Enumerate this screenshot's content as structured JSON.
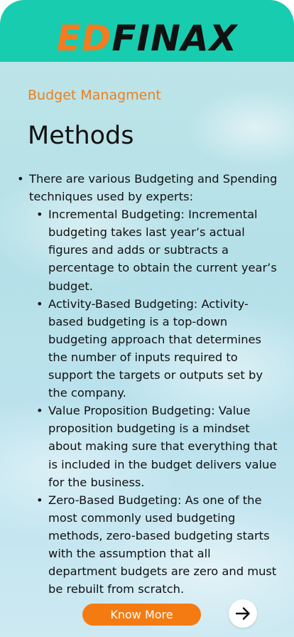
{
  "header": {
    "logo_part1": "ED",
    "logo_part2": "FINAX"
  },
  "section": {
    "category": "Budget Managment",
    "title": "Methods"
  },
  "content": {
    "intro": "There are various Budgeting and Spending techniques used by experts:",
    "items": [
      "Incremental Budgeting: Incremental budgeting takes last year’s actual figures and adds or subtracts a percentage to obtain the current year’s budget.",
      "Activity-Based Budgeting: Activity-based budgeting is a top-down budgeting approach that determines the number of inputs required to support the targets or outputs set by the company.",
      "Value Proposition Budgeting: Value proposition budgeting is a mindset about making sure that everything that is included in the budget delivers value for the business.",
      "Zero-Based Budgeting: As one of the most commonly used budgeting methods, zero-based budgeting starts with the assumption that all department budgets are zero and must be rebuilt from scratch."
    ]
  },
  "actions": {
    "know_more_label": "Know More",
    "next_icon": "arrow-right-icon"
  },
  "colors": {
    "header_bg": "#18ccb0",
    "accent": "#f47b12",
    "logo_dark": "#111111"
  }
}
